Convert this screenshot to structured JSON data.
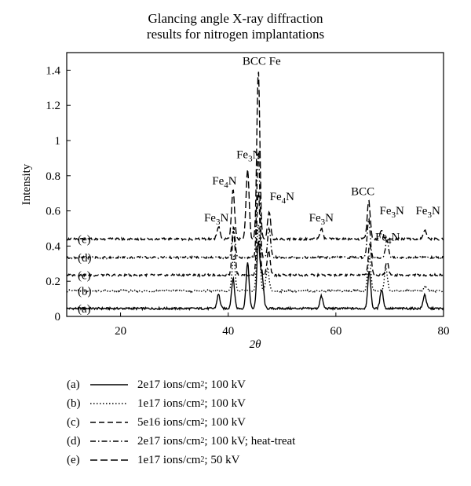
{
  "chart_data": {
    "type": "line",
    "title_line1": "Glancing angle X-ray diffraction",
    "title_line2": "results for nitrogen implantations",
    "xlabel": "2θ",
    "ylabel": "Intensity",
    "xlim": [
      10,
      80
    ],
    "ylim": [
      0,
      1.5
    ],
    "xticks": [
      "20",
      "40",
      "60",
      "80"
    ],
    "yticks": [
      "0",
      "0.2",
      "0.4",
      "0.6",
      "0.8",
      "1",
      "1.2",
      "1.4"
    ],
    "series": [
      {
        "id": "a",
        "label": "(a)",
        "dash": "solid",
        "desc": "2e17 ions/cm",
        "desc_tail": "; 100 kV",
        "baseline": 0.045,
        "peaks": [
          [
            38.2,
            0.08
          ],
          [
            40.9,
            0.17
          ],
          [
            43.6,
            0.26
          ],
          [
            45.6,
            0.38
          ],
          [
            46.3,
            0.18
          ],
          [
            57.3,
            0.07
          ],
          [
            66.2,
            0.21
          ],
          [
            68.5,
            0.11
          ],
          [
            76.5,
            0.08
          ]
        ]
      },
      {
        "id": "b",
        "label": "(b)",
        "dash": "dot",
        "desc": "1e17 ions/cm",
        "desc_tail": "; 100 kV",
        "baseline": 0.145,
        "peaks": [
          [
            41.0,
            0.2
          ],
          [
            45.6,
            0.38
          ],
          [
            47.3,
            0.13
          ],
          [
            66.2,
            0.2
          ],
          [
            69.3,
            0.13
          ],
          [
            76.6,
            0.03
          ]
        ]
      },
      {
        "id": "c",
        "label": "(c)",
        "dash": "dash",
        "desc": "5e16 ions/cm",
        "desc_tail": "; 100 kV",
        "baseline": 0.235,
        "peaks": [
          [
            41.0,
            0.25
          ],
          [
            45.6,
            0.48
          ],
          [
            47.5,
            0.14
          ],
          [
            66.3,
            0.18
          ],
          [
            69.5,
            0.08
          ]
        ]
      },
      {
        "id": "d",
        "label": "(d)",
        "dash": "dashdot",
        "desc": "2e17 ions/cm",
        "desc_tail": "; 100 kV; heat-treat",
        "baseline": 0.335,
        "peaks": [
          [
            41.0,
            0.17
          ],
          [
            45.6,
            0.6
          ],
          [
            47.6,
            0.16
          ],
          [
            66.1,
            0.22
          ],
          [
            69.5,
            0.1
          ]
        ]
      },
      {
        "id": "e",
        "label": "(e)",
        "dash": "longdash",
        "desc": "1e17 ions/cm",
        "desc_tail": "; 50 kV",
        "baseline": 0.44,
        "peaks": [
          [
            38.2,
            0.07
          ],
          [
            40.9,
            0.28
          ],
          [
            43.6,
            0.4
          ],
          [
            45.6,
            0.96
          ],
          [
            47.6,
            0.16
          ],
          [
            57.3,
            0.06
          ],
          [
            66.1,
            0.22
          ],
          [
            68.5,
            0.05
          ],
          [
            76.5,
            0.05
          ]
        ]
      }
    ],
    "annotations": [
      {
        "text": "BCC Fe",
        "x": 46.2,
        "y": 1.43
      },
      {
        "text": "Fe3N",
        "x": 43.8,
        "y": 0.9
      },
      {
        "text": "Fe4N",
        "x": 39.3,
        "y": 0.75
      },
      {
        "text": "Fe4N",
        "x": 50.0,
        "y": 0.66
      },
      {
        "text": "Fe3N",
        "x": 37.8,
        "y": 0.54
      },
      {
        "text": "Fe3N",
        "x": 57.3,
        "y": 0.54
      },
      {
        "text": "BCC",
        "x": 65.0,
        "y": 0.69
      },
      {
        "text": "Fe3N",
        "x": 70.4,
        "y": 0.58
      },
      {
        "text": "Fe4N",
        "x": 69.6,
        "y": 0.43
      },
      {
        "text": "Fe3N",
        "x": 77.1,
        "y": 0.58
      }
    ]
  },
  "legend": {
    "superscript": "2"
  }
}
